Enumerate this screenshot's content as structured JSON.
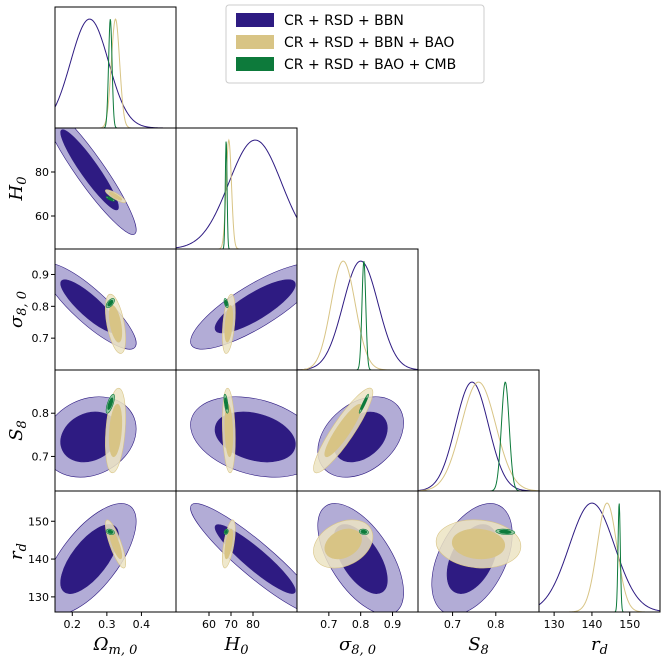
{
  "chart_data": {
    "type": "triangle-corner",
    "parameters": [
      {
        "id": "om",
        "label": "Ωm, 0",
        "label_main": "Ω",
        "label_sub": "m, 0",
        "range": [
          0.15,
          0.5
        ],
        "ticks": [
          0.2,
          0.3,
          0.4
        ],
        "tick_labels": [
          "0.2",
          "0.3",
          "0.4"
        ]
      },
      {
        "id": "h0",
        "label": "H0",
        "label_main": "H",
        "label_sub": "0",
        "range": [
          45,
          100
        ],
        "ticks": [
          60,
          70,
          80
        ],
        "tick_labels": [
          "60",
          "70",
          "80"
        ],
        "yticks": [
          60,
          80
        ],
        "ytick_labels": [
          "60",
          "80"
        ]
      },
      {
        "id": "s80",
        "label": "σ8, 0",
        "label_main": "σ",
        "label_sub": "8, 0",
        "range": [
          0.6,
          0.98
        ],
        "ticks": [
          0.7,
          0.8,
          0.9
        ],
        "tick_labels": [
          "0.7",
          "0.8",
          "0.9"
        ]
      },
      {
        "id": "s8",
        "label": "S8",
        "label_main": "S",
        "label_sub": "8",
        "range": [
          0.62,
          0.9
        ],
        "ticks": [
          0.7,
          0.8
        ],
        "tick_labels": [
          "0.7",
          "0.8"
        ]
      },
      {
        "id": "rd",
        "label": "rd",
        "label_main": "r",
        "label_sub": "d",
        "range": [
          126,
          158
        ],
        "ticks": [
          130,
          140,
          150
        ],
        "tick_labels": [
          "130",
          "140",
          "150"
        ]
      }
    ],
    "series": [
      {
        "name": "CR + RSD + BBN",
        "colors": {
          "inner": "#2e1b82",
          "outer": "#a59dcf",
          "line": "#2e1b82"
        },
        "mean": {
          "om": 0.25,
          "h0": 81,
          "s80": 0.8,
          "s8": 0.745,
          "rd": 140
        },
        "sigma": {
          "om": 0.055,
          "h0": 12,
          "s80": 0.055,
          "s8": 0.038,
          "rd": 6
        },
        "corr": {
          "om-h0": -0.93,
          "om-s80": -0.86,
          "om-s8": 0.2,
          "om-rd": 0.68,
          "h0-s80": 0.82,
          "h0-s8": -0.3,
          "h0-rd": -0.92,
          "s80-s8": 0.35,
          "s80-rd": -0.6,
          "s8-rd": 0.45
        }
      },
      {
        "name": "CR + RSD + BBN + BAO",
        "colors": {
          "inner": "#d8c485",
          "outer": "#ece4c3",
          "line": "#d8c485"
        },
        "mean": {
          "om": 0.325,
          "h0": 69,
          "s80": 0.745,
          "s8": 0.76,
          "rd": 144
        },
        "sigma": {
          "om": 0.012,
          "h0": 1.2,
          "s80": 0.038,
          "s8": 0.04,
          "rd": 2.6
        },
        "corr": {
          "om-h0": -0.85,
          "om-s80": -0.5,
          "om-s8": 0.3,
          "om-rd": -0.8,
          "h0-s80": 0.4,
          "h0-s8": -0.2,
          "h0-rd": 0.6,
          "s80-s8": 0.9,
          "s80-rd": 0.3,
          "s8-rd": -0.1
        }
      },
      {
        "name": "CR + RSD + BAO + CMB",
        "colors": {
          "inner": "#0d7a3b",
          "outer": "#85c39a",
          "line": "#0d7a3b"
        },
        "mean": {
          "om": 0.31,
          "h0": 67.8,
          "s80": 0.81,
          "s8": 0.822,
          "rd": 147.2
        },
        "sigma": {
          "om": 0.005,
          "h0": 0.4,
          "s80": 0.006,
          "s8": 0.009,
          "rd": 0.3
        },
        "corr": {
          "om-h0": -0.9,
          "om-s80": 0.6,
          "om-s8": 0.7,
          "om-rd": -0.3,
          "h0-s80": -0.5,
          "h0-s8": -0.6,
          "h0-rd": 0.3,
          "s80-s8": 0.95,
          "s80-rd": -0.2,
          "s8-rd": -0.25
        }
      }
    ],
    "contour_levels": [
      "68%",
      "95%"
    ],
    "legend": {
      "position": "top-right",
      "entries": [
        "CR + RSD + BBN",
        "CR + RSD + BBN + BAO",
        "CR + RSD + BAO + CMB"
      ]
    }
  }
}
